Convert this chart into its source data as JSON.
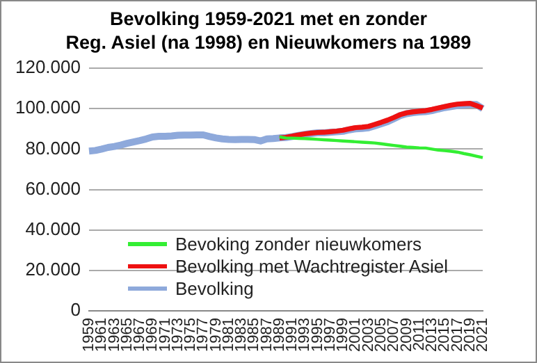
{
  "chart_data": {
    "type": "line",
    "title": "Bevolking 1959-2021 met en zonder\nReg. Asiel (na 1998) en Nieuwkomers na 1989",
    "categories": [
      "1959",
      null,
      "1961",
      null,
      "1963",
      null,
      "1965",
      null,
      "1967",
      null,
      "1969",
      null,
      "1971",
      null,
      "1973",
      null,
      "1975",
      null,
      "1977",
      null,
      "1979",
      null,
      "1981",
      null,
      "1983",
      null,
      "1985",
      null,
      "1987",
      null,
      "1989",
      null,
      "1991",
      null,
      "1993",
      null,
      "1995",
      null,
      "1997",
      null,
      "1999",
      null,
      "2001",
      null,
      "2003",
      null,
      "2005",
      null,
      "2007",
      null,
      "2009",
      null,
      "2011",
      null,
      "2013",
      null,
      "2015",
      null,
      "2017",
      null,
      "2019",
      null,
      "2021"
    ],
    "series": [
      {
        "name": "Bevoking zonder nieuwkomers",
        "color": "#33ee33",
        "values": [
          null,
          null,
          null,
          null,
          null,
          null,
          null,
          null,
          null,
          null,
          null,
          null,
          null,
          null,
          null,
          null,
          null,
          null,
          null,
          null,
          null,
          null,
          null,
          null,
          null,
          null,
          null,
          null,
          null,
          null,
          86000,
          85500,
          85400,
          85300,
          85200,
          85000,
          84800,
          84600,
          84400,
          84200,
          84000,
          83800,
          83600,
          83400,
          83200,
          83000,
          82600,
          82200,
          81800,
          81400,
          81000,
          80800,
          80600,
          80500,
          80000,
          79500,
          79200,
          78900,
          78500,
          77800,
          77200,
          76500,
          75800
        ]
      },
      {
        "name": "Bevolking met Wachtregister Asiel",
        "color": "#ee1111",
        "values": [
          null,
          null,
          null,
          null,
          null,
          null,
          null,
          null,
          null,
          null,
          null,
          null,
          null,
          null,
          null,
          null,
          null,
          null,
          null,
          null,
          null,
          null,
          null,
          null,
          null,
          null,
          null,
          null,
          null,
          null,
          85500,
          85800,
          86400,
          87000,
          87500,
          87900,
          88200,
          88300,
          88600,
          88900,
          89300,
          90000,
          90600,
          90800,
          91200,
          92200,
          93200,
          94300,
          95600,
          97000,
          97900,
          98400,
          98700,
          99000,
          99600,
          100300,
          101000,
          101700,
          102200,
          102400,
          102600,
          101500,
          100300
        ]
      },
      {
        "name": "Bevolking",
        "color": "#8ea9db",
        "values": [
          79000,
          79300,
          80000,
          80800,
          81300,
          82000,
          82800,
          83500,
          84200,
          85000,
          86000,
          86300,
          86300,
          86500,
          86800,
          86900,
          86900,
          87000,
          87000,
          86200,
          85500,
          85000,
          84800,
          84700,
          84800,
          84800,
          84700,
          84000,
          85000,
          85200,
          85500,
          85700,
          86200,
          86800,
          87300,
          87700,
          88000,
          88000,
          88300,
          88500,
          88800,
          89500,
          90000,
          90200,
          90500,
          91500,
          92500,
          93500,
          95000,
          96500,
          97500,
          98000,
          98300,
          98500,
          99000,
          99800,
          100500,
          101000,
          101500,
          101800,
          102000,
          102000,
          100000
        ]
      }
    ],
    "ylim": [
      0,
      120000
    ],
    "yticks": [
      {
        "value": 0,
        "label": "0"
      },
      {
        "value": 20000,
        "label": "20.000"
      },
      {
        "value": 40000,
        "label": "40.000"
      },
      {
        "value": 60000,
        "label": "60.000"
      },
      {
        "value": 80000,
        "label": "80.000"
      },
      {
        "value": 100000,
        "label": "100.000"
      },
      {
        "value": 120000,
        "label": "120.000"
      }
    ],
    "grid": "y",
    "legend": "bottom",
    "marker": "none",
    "line_style": "solid"
  }
}
